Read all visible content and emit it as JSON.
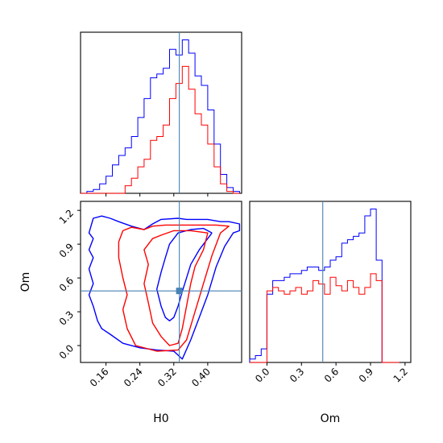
{
  "chart_data": {
    "type": "corner",
    "parameters": [
      "H0",
      "Om"
    ],
    "colors": {
      "series_a": "#ff0000",
      "series_b": "#0000ff",
      "truth": "#4682b4"
    },
    "truth": {
      "H0": 0.333,
      "Om": 0.485
    },
    "panels": [
      {
        "id": "hist-H0",
        "type": "histogram",
        "xlim": [
          0.1,
          0.48
        ],
        "xticks": [
          0.16,
          0.24,
          0.32,
          0.4
        ],
        "bin_edges": [
          0.1,
          0.115,
          0.13,
          0.145,
          0.16,
          0.175,
          0.19,
          0.205,
          0.22,
          0.235,
          0.25,
          0.265,
          0.28,
          0.295,
          0.31,
          0.325,
          0.34,
          0.355,
          0.37,
          0.385,
          0.4,
          0.415,
          0.43,
          0.445,
          0.46,
          0.475
        ],
        "series": [
          {
            "color": "#0000ff",
            "counts": [
              0,
              0.01,
              0.02,
              0.05,
              0.09,
              0.15,
              0.2,
              0.24,
              0.3,
              0.4,
              0.5,
              0.61,
              0.63,
              0.66,
              0.76,
              0.73,
              0.81,
              0.74,
              0.62,
              0.57,
              0.44,
              0.26,
              0.1,
              0.03,
              0.01
            ]
          },
          {
            "color": "#ff0000",
            "counts": [
              0,
              0,
              0,
              0,
              0,
              0,
              0,
              0.04,
              0.08,
              0.14,
              0.18,
              0.28,
              0.3,
              0.36,
              0.5,
              0.58,
              0.67,
              0.55,
              0.42,
              0.36,
              0.26,
              0.14,
              0.05,
              0.01,
              0
            ]
          }
        ]
      },
      {
        "id": "hist-Om",
        "type": "histogram",
        "xlim": [
          -0.15,
          1.25
        ],
        "xticks": [
          0.0,
          0.3,
          0.6,
          0.9,
          1.2
        ],
        "bin_edges": [
          -0.15,
          -0.1,
          -0.05,
          0.0,
          0.05,
          0.1,
          0.15,
          0.2,
          0.25,
          0.3,
          0.35,
          0.4,
          0.45,
          0.5,
          0.55,
          0.6,
          0.65,
          0.7,
          0.75,
          0.8,
          0.85,
          0.9,
          0.95,
          1.0,
          1.05,
          1.1,
          1.15
        ],
        "series": [
          {
            "color": "#0000ff",
            "counts": [
              0.02,
              0.04,
              0.08,
              0.4,
              0.48,
              0.48,
              0.5,
              0.52,
              0.52,
              0.54,
              0.56,
              0.56,
              0.54,
              0.56,
              0.6,
              0.62,
              0.7,
              0.72,
              0.74,
              0.76,
              0.86,
              0.9,
              0.6,
              0,
              0,
              0
            ]
          },
          {
            "color": "#ff0000",
            "counts": [
              0,
              0,
              0,
              0.42,
              0.44,
              0.42,
              0.4,
              0.42,
              0.44,
              0.4,
              0.42,
              0.48,
              0.46,
              0.4,
              0.5,
              0.45,
              0.42,
              0.48,
              0.44,
              0.4,
              0.44,
              0.52,
              0.48,
              0,
              0,
              0
            ]
          }
        ]
      },
      {
        "id": "contour-H0-Om",
        "type": "contour",
        "xlim": [
          0.1,
          0.48
        ],
        "ylim": [
          -0.15,
          1.28
        ],
        "xticks": [
          0.16,
          0.24,
          0.32,
          0.4
        ],
        "yticks": [
          0.0,
          0.3,
          0.6,
          0.9,
          1.2
        ],
        "contours": [
          {
            "color": "#0000ff",
            "level": "outer",
            "points": [
              [
                0.43,
                1.1
              ],
              [
                0.4,
                1.12
              ],
              [
                0.35,
                1.12
              ],
              [
                0.33,
                1.13
              ],
              [
                0.29,
                1.12
              ],
              [
                0.27,
                1.08
              ],
              [
                0.25,
                1.03
              ],
              [
                0.22,
                1.06
              ],
              [
                0.19,
                1.1
              ],
              [
                0.17,
                1.13
              ],
              [
                0.15,
                1.15
              ],
              [
                0.13,
                1.13
              ],
              [
                0.12,
                1.0
              ],
              [
                0.13,
                0.95
              ],
              [
                0.12,
                0.85
              ],
              [
                0.13,
                0.78
              ],
              [
                0.12,
                0.68
              ],
              [
                0.13,
                0.55
              ],
              [
                0.12,
                0.45
              ],
              [
                0.13,
                0.35
              ],
              [
                0.14,
                0.22
              ],
              [
                0.15,
                0.15
              ],
              [
                0.17,
                0.1
              ],
              [
                0.2,
                0.02
              ],
              [
                0.24,
                -0.02
              ],
              [
                0.28,
                -0.04
              ],
              [
                0.32,
                -0.05
              ],
              [
                0.34,
                -0.12
              ],
              [
                0.36,
                0.05
              ],
              [
                0.38,
                0.25
              ],
              [
                0.4,
                0.45
              ],
              [
                0.42,
                0.7
              ],
              [
                0.44,
                0.88
              ],
              [
                0.46,
                1.0
              ],
              [
                0.475,
                1.02
              ],
              [
                0.475,
                1.08
              ],
              [
                0.45,
                1.1
              ],
              [
                0.43,
                1.1
              ]
            ]
          },
          {
            "color": "#0000ff",
            "level": "inner",
            "points": [
              [
                0.41,
                1.0
              ],
              [
                0.4,
                0.95
              ],
              [
                0.38,
                0.85
              ],
              [
                0.36,
                0.72
              ],
              [
                0.35,
                0.6
              ],
              [
                0.34,
                0.48
              ],
              [
                0.33,
                0.35
              ],
              [
                0.32,
                0.25
              ],
              [
                0.31,
                0.22
              ],
              [
                0.3,
                0.25
              ],
              [
                0.29,
                0.35
              ],
              [
                0.28,
                0.5
              ],
              [
                0.29,
                0.65
              ],
              [
                0.3,
                0.78
              ],
              [
                0.31,
                0.9
              ],
              [
                0.33,
                1.0
              ],
              [
                0.36,
                1.03
              ],
              [
                0.39,
                1.04
              ],
              [
                0.41,
                1.0
              ]
            ]
          },
          {
            "color": "#ff0000",
            "level": "outer",
            "points": [
              [
                0.27,
                1.06
              ],
              [
                0.25,
                1.03
              ],
              [
                0.22,
                1.05
              ],
              [
                0.2,
                1.02
              ],
              [
                0.19,
                0.92
              ],
              [
                0.19,
                0.78
              ],
              [
                0.2,
                0.6
              ],
              [
                0.21,
                0.45
              ],
              [
                0.2,
                0.32
              ],
              [
                0.21,
                0.15
              ],
              [
                0.23,
                0.0
              ],
              [
                0.28,
                -0.05
              ],
              [
                0.33,
                -0.04
              ],
              [
                0.35,
                0.05
              ],
              [
                0.37,
                0.3
              ],
              [
                0.39,
                0.55
              ],
              [
                0.41,
                0.8
              ],
              [
                0.43,
                1.0
              ],
              [
                0.45,
                1.06
              ],
              [
                0.42,
                1.07
              ],
              [
                0.38,
                1.07
              ],
              [
                0.34,
                1.07
              ],
              [
                0.3,
                1.07
              ],
              [
                0.27,
                1.06
              ]
            ]
          },
          {
            "color": "#ff0000",
            "level": "inner",
            "points": [
              [
                0.29,
                0.98
              ],
              [
                0.32,
                1.02
              ],
              [
                0.36,
                1.02
              ],
              [
                0.4,
                1.0
              ],
              [
                0.39,
                0.85
              ],
              [
                0.37,
                0.7
              ],
              [
                0.36,
                0.55
              ],
              [
                0.35,
                0.35
              ],
              [
                0.34,
                0.15
              ],
              [
                0.33,
                0.02
              ],
              [
                0.31,
                0.0
              ],
              [
                0.29,
                0.08
              ],
              [
                0.27,
                0.2
              ],
              [
                0.26,
                0.38
              ],
              [
                0.25,
                0.55
              ],
              [
                0.26,
                0.72
              ],
              [
                0.25,
                0.85
              ],
              [
                0.27,
                0.95
              ],
              [
                0.29,
                0.98
              ]
            ]
          }
        ]
      }
    ]
  }
}
